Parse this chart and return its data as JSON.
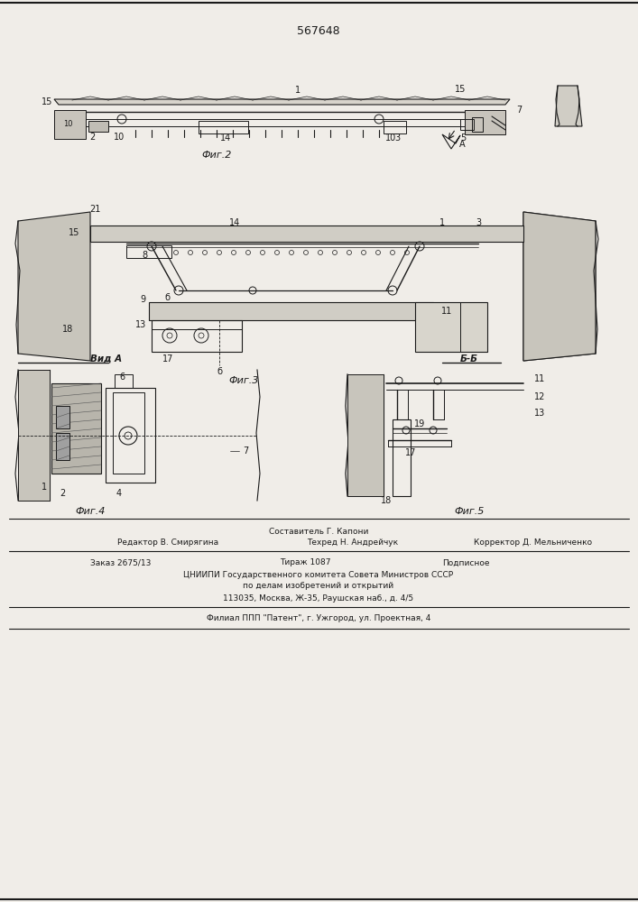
{
  "title_number": "567648",
  "fig2_label": "Фиг.2",
  "fig3_label": "Фиг.3",
  "fig4_label": "Фиг.4",
  "fig5_label": "Фиг.5",
  "vid_a_label": "Вид А",
  "bb_label": "Б-Б",
  "footer_line1": "Составитель Г. Капони",
  "footer_line2_left": "Редактор В. Смирягина",
  "footer_line2_mid": "Техред Н. Андрейчук",
  "footer_line2_right": "Корректор Д. Мельниченко",
  "footer_line3_left": "Заказ 2675/13",
  "footer_line3_mid": "Тираж 1087",
  "footer_line3_right": "Подписное",
  "footer_line4": "ЦНИИПИ Государственного комитета Совета Министров СССР",
  "footer_line5": "по делам изобретений и открытий",
  "footer_line6": "113035, Москва, Ж-35, Раушская наб., д. 4/5",
  "footer_line7": "Филиал ППП \"Патент\", г. Ужгород, ул. Проектная, 4",
  "bg_color": "#f0ede8",
  "line_color": "#1a1a1a",
  "text_color": "#1a1a1a"
}
